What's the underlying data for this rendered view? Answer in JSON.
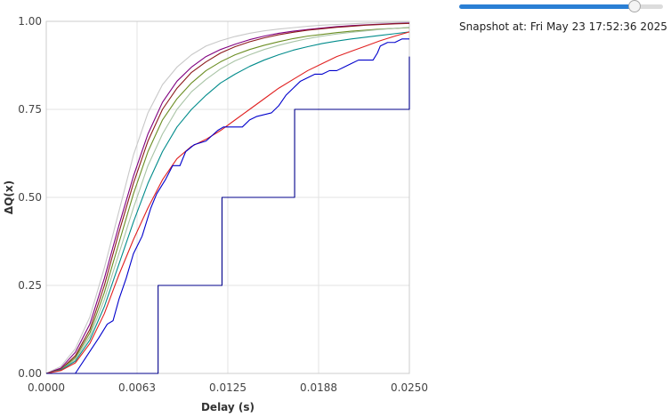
{
  "controls": {
    "snapshot_prefix": "Snapshot at:",
    "snapshot_time": "Fri May 23 17:52:36 2025",
    "slider_position": 0.86,
    "slider_fill_color": "#2a7fd4"
  },
  "chart_data": {
    "type": "line",
    "xlabel": "Delay (s)",
    "ylabel": "ΔQ(x)",
    "xlim": [
      0,
      0.025
    ],
    "ylim": [
      0,
      1
    ],
    "xticks": [
      0,
      0.00625,
      0.0125,
      0.01875,
      0.025
    ],
    "xtick_labels": [
      "0.0000",
      "0.0063",
      "0.0125",
      "0.0188",
      "0.0250"
    ],
    "yticks": [
      0,
      0.25,
      0.5,
      0.75,
      1
    ],
    "ytick_labels": [
      "0.00",
      "0.25",
      "0.50",
      "0.75",
      "1.00"
    ],
    "grid": true,
    "series": [
      {
        "color": "#c8c8c8",
        "step": false,
        "points": [
          [
            0,
            0
          ],
          [
            0.001,
            0.02
          ],
          [
            0.002,
            0.07
          ],
          [
            0.003,
            0.16
          ],
          [
            0.004,
            0.3
          ],
          [
            0.005,
            0.46
          ],
          [
            0.006,
            0.62
          ],
          [
            0.007,
            0.74
          ],
          [
            0.008,
            0.82
          ],
          [
            0.009,
            0.87
          ],
          [
            0.01,
            0.905
          ],
          [
            0.011,
            0.93
          ],
          [
            0.012,
            0.945
          ],
          [
            0.013,
            0.957
          ],
          [
            0.014,
            0.966
          ],
          [
            0.015,
            0.973
          ],
          [
            0.016,
            0.978
          ],
          [
            0.017,
            0.982
          ],
          [
            0.018,
            0.986
          ],
          [
            0.019,
            0.989
          ],
          [
            0.02,
            0.991
          ],
          [
            0.021,
            0.993
          ],
          [
            0.022,
            0.995
          ],
          [
            0.023,
            0.996
          ],
          [
            0.024,
            0.997
          ],
          [
            0.025,
            0.998
          ]
        ]
      },
      {
        "color": "#800080",
        "step": false,
        "points": [
          [
            0,
            0
          ],
          [
            0.001,
            0.015
          ],
          [
            0.002,
            0.06
          ],
          [
            0.003,
            0.14
          ],
          [
            0.004,
            0.27
          ],
          [
            0.005,
            0.42
          ],
          [
            0.006,
            0.56
          ],
          [
            0.007,
            0.68
          ],
          [
            0.008,
            0.77
          ],
          [
            0.009,
            0.83
          ],
          [
            0.01,
            0.87
          ],
          [
            0.011,
            0.9
          ],
          [
            0.012,
            0.92
          ],
          [
            0.013,
            0.935
          ],
          [
            0.014,
            0.948
          ],
          [
            0.015,
            0.958
          ],
          [
            0.016,
            0.966
          ],
          [
            0.017,
            0.972
          ],
          [
            0.018,
            0.977
          ],
          [
            0.019,
            0.981
          ],
          [
            0.02,
            0.985
          ],
          [
            0.021,
            0.988
          ],
          [
            0.022,
            0.99
          ],
          [
            0.023,
            0.992
          ],
          [
            0.024,
            0.994
          ],
          [
            0.025,
            0.995
          ]
        ]
      },
      {
        "color": "#8b1a1a",
        "step": false,
        "points": [
          [
            0,
            0
          ],
          [
            0.001,
            0.012
          ],
          [
            0.002,
            0.05
          ],
          [
            0.003,
            0.125
          ],
          [
            0.004,
            0.25
          ],
          [
            0.005,
            0.4
          ],
          [
            0.006,
            0.54
          ],
          [
            0.007,
            0.66
          ],
          [
            0.008,
            0.75
          ],
          [
            0.009,
            0.81
          ],
          [
            0.01,
            0.855
          ],
          [
            0.011,
            0.885
          ],
          [
            0.012,
            0.91
          ],
          [
            0.013,
            0.928
          ],
          [
            0.014,
            0.942
          ],
          [
            0.015,
            0.953
          ],
          [
            0.016,
            0.962
          ],
          [
            0.017,
            0.969
          ],
          [
            0.018,
            0.975
          ],
          [
            0.019,
            0.979
          ],
          [
            0.02,
            0.983
          ],
          [
            0.021,
            0.986
          ],
          [
            0.022,
            0.989
          ],
          [
            0.023,
            0.991
          ],
          [
            0.024,
            0.993
          ],
          [
            0.025,
            0.994
          ]
        ]
      },
      {
        "color": "#6b8e23",
        "step": false,
        "points": [
          [
            0,
            0
          ],
          [
            0.001,
            0.01
          ],
          [
            0.002,
            0.045
          ],
          [
            0.003,
            0.115
          ],
          [
            0.004,
            0.23
          ],
          [
            0.005,
            0.37
          ],
          [
            0.006,
            0.51
          ],
          [
            0.007,
            0.63
          ],
          [
            0.008,
            0.72
          ],
          [
            0.009,
            0.78
          ],
          [
            0.01,
            0.825
          ],
          [
            0.011,
            0.86
          ],
          [
            0.012,
            0.885
          ],
          [
            0.013,
            0.905
          ],
          [
            0.014,
            0.92
          ],
          [
            0.015,
            0.932
          ],
          [
            0.016,
            0.942
          ],
          [
            0.017,
            0.951
          ],
          [
            0.018,
            0.958
          ],
          [
            0.019,
            0.963
          ],
          [
            0.02,
            0.968
          ],
          [
            0.021,
            0.972
          ],
          [
            0.022,
            0.975
          ],
          [
            0.023,
            0.978
          ],
          [
            0.024,
            0.98
          ],
          [
            0.025,
            0.982
          ]
        ]
      },
      {
        "color": "#a9c4a6",
        "step": false,
        "points": [
          [
            0,
            0
          ],
          [
            0.001,
            0.01
          ],
          [
            0.002,
            0.04
          ],
          [
            0.003,
            0.105
          ],
          [
            0.004,
            0.21
          ],
          [
            0.005,
            0.34
          ],
          [
            0.006,
            0.47
          ],
          [
            0.007,
            0.59
          ],
          [
            0.008,
            0.68
          ],
          [
            0.009,
            0.75
          ],
          [
            0.01,
            0.8
          ],
          [
            0.011,
            0.835
          ],
          [
            0.012,
            0.865
          ],
          [
            0.013,
            0.888
          ],
          [
            0.014,
            0.905
          ],
          [
            0.015,
            0.92
          ],
          [
            0.016,
            0.932
          ],
          [
            0.017,
            0.942
          ],
          [
            0.018,
            0.951
          ],
          [
            0.019,
            0.958
          ],
          [
            0.02,
            0.964
          ],
          [
            0.021,
            0.969
          ],
          [
            0.022,
            0.973
          ],
          [
            0.023,
            0.977
          ],
          [
            0.024,
            0.98
          ],
          [
            0.025,
            0.983
          ]
        ]
      },
      {
        "color": "#008b8b",
        "step": false,
        "points": [
          [
            0,
            0
          ],
          [
            0.001,
            0.01
          ],
          [
            0.002,
            0.035
          ],
          [
            0.003,
            0.095
          ],
          [
            0.004,
            0.19
          ],
          [
            0.005,
            0.31
          ],
          [
            0.006,
            0.43
          ],
          [
            0.007,
            0.54
          ],
          [
            0.008,
            0.63
          ],
          [
            0.009,
            0.7
          ],
          [
            0.01,
            0.75
          ],
          [
            0.011,
            0.79
          ],
          [
            0.012,
            0.825
          ],
          [
            0.013,
            0.85
          ],
          [
            0.014,
            0.872
          ],
          [
            0.015,
            0.89
          ],
          [
            0.016,
            0.905
          ],
          [
            0.017,
            0.918
          ],
          [
            0.018,
            0.928
          ],
          [
            0.019,
            0.937
          ],
          [
            0.02,
            0.944
          ],
          [
            0.021,
            0.95
          ],
          [
            0.022,
            0.955
          ],
          [
            0.023,
            0.96
          ],
          [
            0.024,
            0.965
          ],
          [
            0.025,
            0.97
          ]
        ]
      },
      {
        "color": "#e02020",
        "step": false,
        "points": [
          [
            0,
            0
          ],
          [
            0.001,
            0.008
          ],
          [
            0.002,
            0.03
          ],
          [
            0.003,
            0.085
          ],
          [
            0.004,
            0.17
          ],
          [
            0.005,
            0.28
          ],
          [
            0.006,
            0.38
          ],
          [
            0.007,
            0.47
          ],
          [
            0.008,
            0.55
          ],
          [
            0.009,
            0.61
          ],
          [
            0.01,
            0.645
          ],
          [
            0.011,
            0.665
          ],
          [
            0.012,
            0.69
          ],
          [
            0.013,
            0.72
          ],
          [
            0.014,
            0.75
          ],
          [
            0.015,
            0.78
          ],
          [
            0.016,
            0.81
          ],
          [
            0.017,
            0.835
          ],
          [
            0.018,
            0.86
          ],
          [
            0.019,
            0.88
          ],
          [
            0.02,
            0.9
          ],
          [
            0.021,
            0.915
          ],
          [
            0.022,
            0.93
          ],
          [
            0.023,
            0.945
          ],
          [
            0.024,
            0.958
          ],
          [
            0.025,
            0.97
          ]
        ]
      },
      {
        "color": "#0000cc",
        "step": false,
        "points": [
          [
            0,
            0
          ],
          [
            0.002,
            0
          ],
          [
            0.0028,
            0.05
          ],
          [
            0.0036,
            0.1
          ],
          [
            0.0042,
            0.14
          ],
          [
            0.0046,
            0.15
          ],
          [
            0.005,
            0.21
          ],
          [
            0.0055,
            0.27
          ],
          [
            0.006,
            0.34
          ],
          [
            0.0066,
            0.39
          ],
          [
            0.0072,
            0.47
          ],
          [
            0.0076,
            0.51
          ],
          [
            0.0082,
            0.55
          ],
          [
            0.0087,
            0.59
          ],
          [
            0.0092,
            0.59
          ],
          [
            0.0096,
            0.63
          ],
          [
            0.0102,
            0.65
          ],
          [
            0.011,
            0.66
          ],
          [
            0.0118,
            0.69
          ],
          [
            0.0122,
            0.7
          ],
          [
            0.0135,
            0.7
          ],
          [
            0.014,
            0.72
          ],
          [
            0.0145,
            0.73
          ],
          [
            0.0155,
            0.74
          ],
          [
            0.016,
            0.76
          ],
          [
            0.0165,
            0.79
          ],
          [
            0.017,
            0.81
          ],
          [
            0.0175,
            0.83
          ],
          [
            0.018,
            0.84
          ],
          [
            0.0185,
            0.85
          ],
          [
            0.019,
            0.85
          ],
          [
            0.0195,
            0.86
          ],
          [
            0.02,
            0.86
          ],
          [
            0.0205,
            0.87
          ],
          [
            0.021,
            0.88
          ],
          [
            0.0215,
            0.89
          ],
          [
            0.0225,
            0.89
          ],
          [
            0.0228,
            0.91
          ],
          [
            0.023,
            0.93
          ],
          [
            0.0235,
            0.94
          ],
          [
            0.024,
            0.94
          ],
          [
            0.0245,
            0.95
          ],
          [
            0.025,
            0.95
          ]
        ]
      },
      {
        "color": "#00008b",
        "step": true,
        "points": [
          [
            0,
            0
          ],
          [
            0.0077,
            0
          ],
          [
            0.0077,
            0.25
          ],
          [
            0.0121,
            0.25
          ],
          [
            0.0121,
            0.5
          ],
          [
            0.0171,
            0.5
          ],
          [
            0.0171,
            0.75
          ],
          [
            0.025,
            0.75
          ],
          [
            0.025,
            0.9
          ]
        ]
      }
    ]
  }
}
